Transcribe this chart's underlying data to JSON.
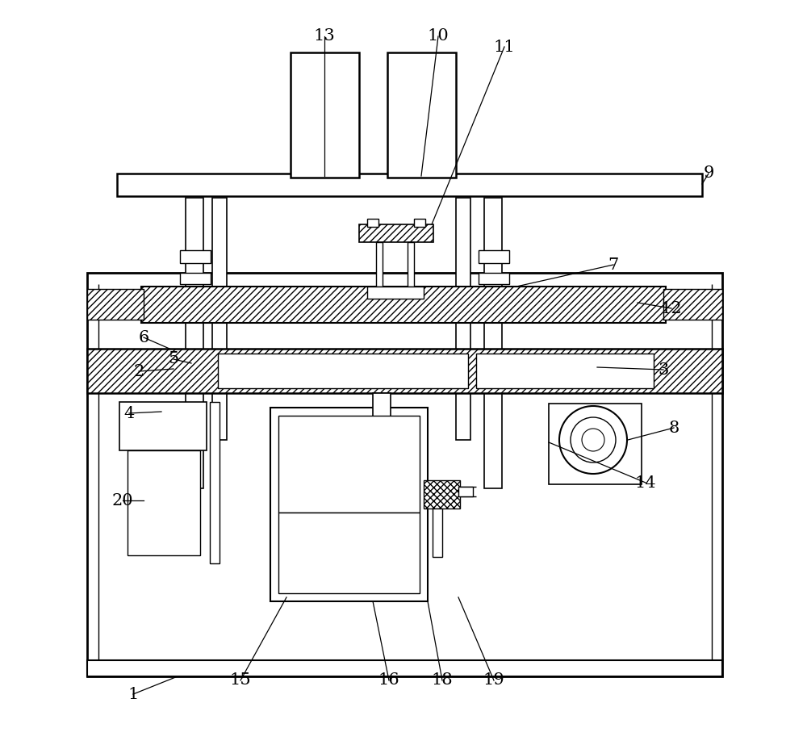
{
  "bg_color": "#ffffff",
  "line_color": "#000000",
  "figsize": [
    10.0,
    9.23
  ],
  "dpi": 100,
  "label_fontsize": 15
}
